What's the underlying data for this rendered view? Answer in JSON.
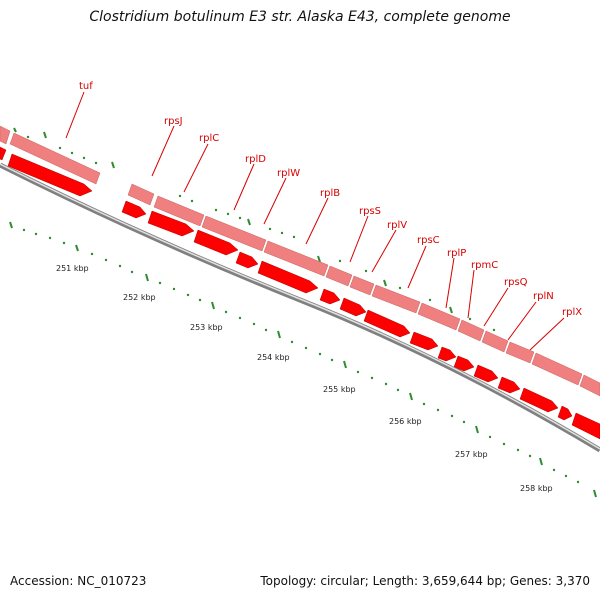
{
  "title": "Clostridium botulinum E3 str. Alaska E43, complete genome",
  "accession": "Accession: NC_010723",
  "summary": "Topology: circular; Length: 3,659,644 bp; Genes: 3,370",
  "colors": {
    "gene_fill": "#ff0000",
    "gene_light": "#f08080",
    "label": "#d80000",
    "tick": "#2e8b2e",
    "backbone": "#808080"
  },
  "genes": [
    {
      "label": "tuf"
    },
    {
      "label": "rpsJ"
    },
    {
      "label": "rplC"
    },
    {
      "label": "rplD"
    },
    {
      "label": "rplW"
    },
    {
      "label": "rplB"
    },
    {
      "label": "rpsS"
    },
    {
      "label": "rplV"
    },
    {
      "label": "rpsC"
    },
    {
      "label": "rplP"
    },
    {
      "label": "rpmC"
    },
    {
      "label": "rpsQ"
    },
    {
      "label": "rplN"
    },
    {
      "label": "rplX"
    }
  ],
  "scale_labels": [
    "251 kbp",
    "252 kbp",
    "253 kbp",
    "254 kbp",
    "255 kbp",
    "256 kbp",
    "257 kbp",
    "258 kbp"
  ]
}
